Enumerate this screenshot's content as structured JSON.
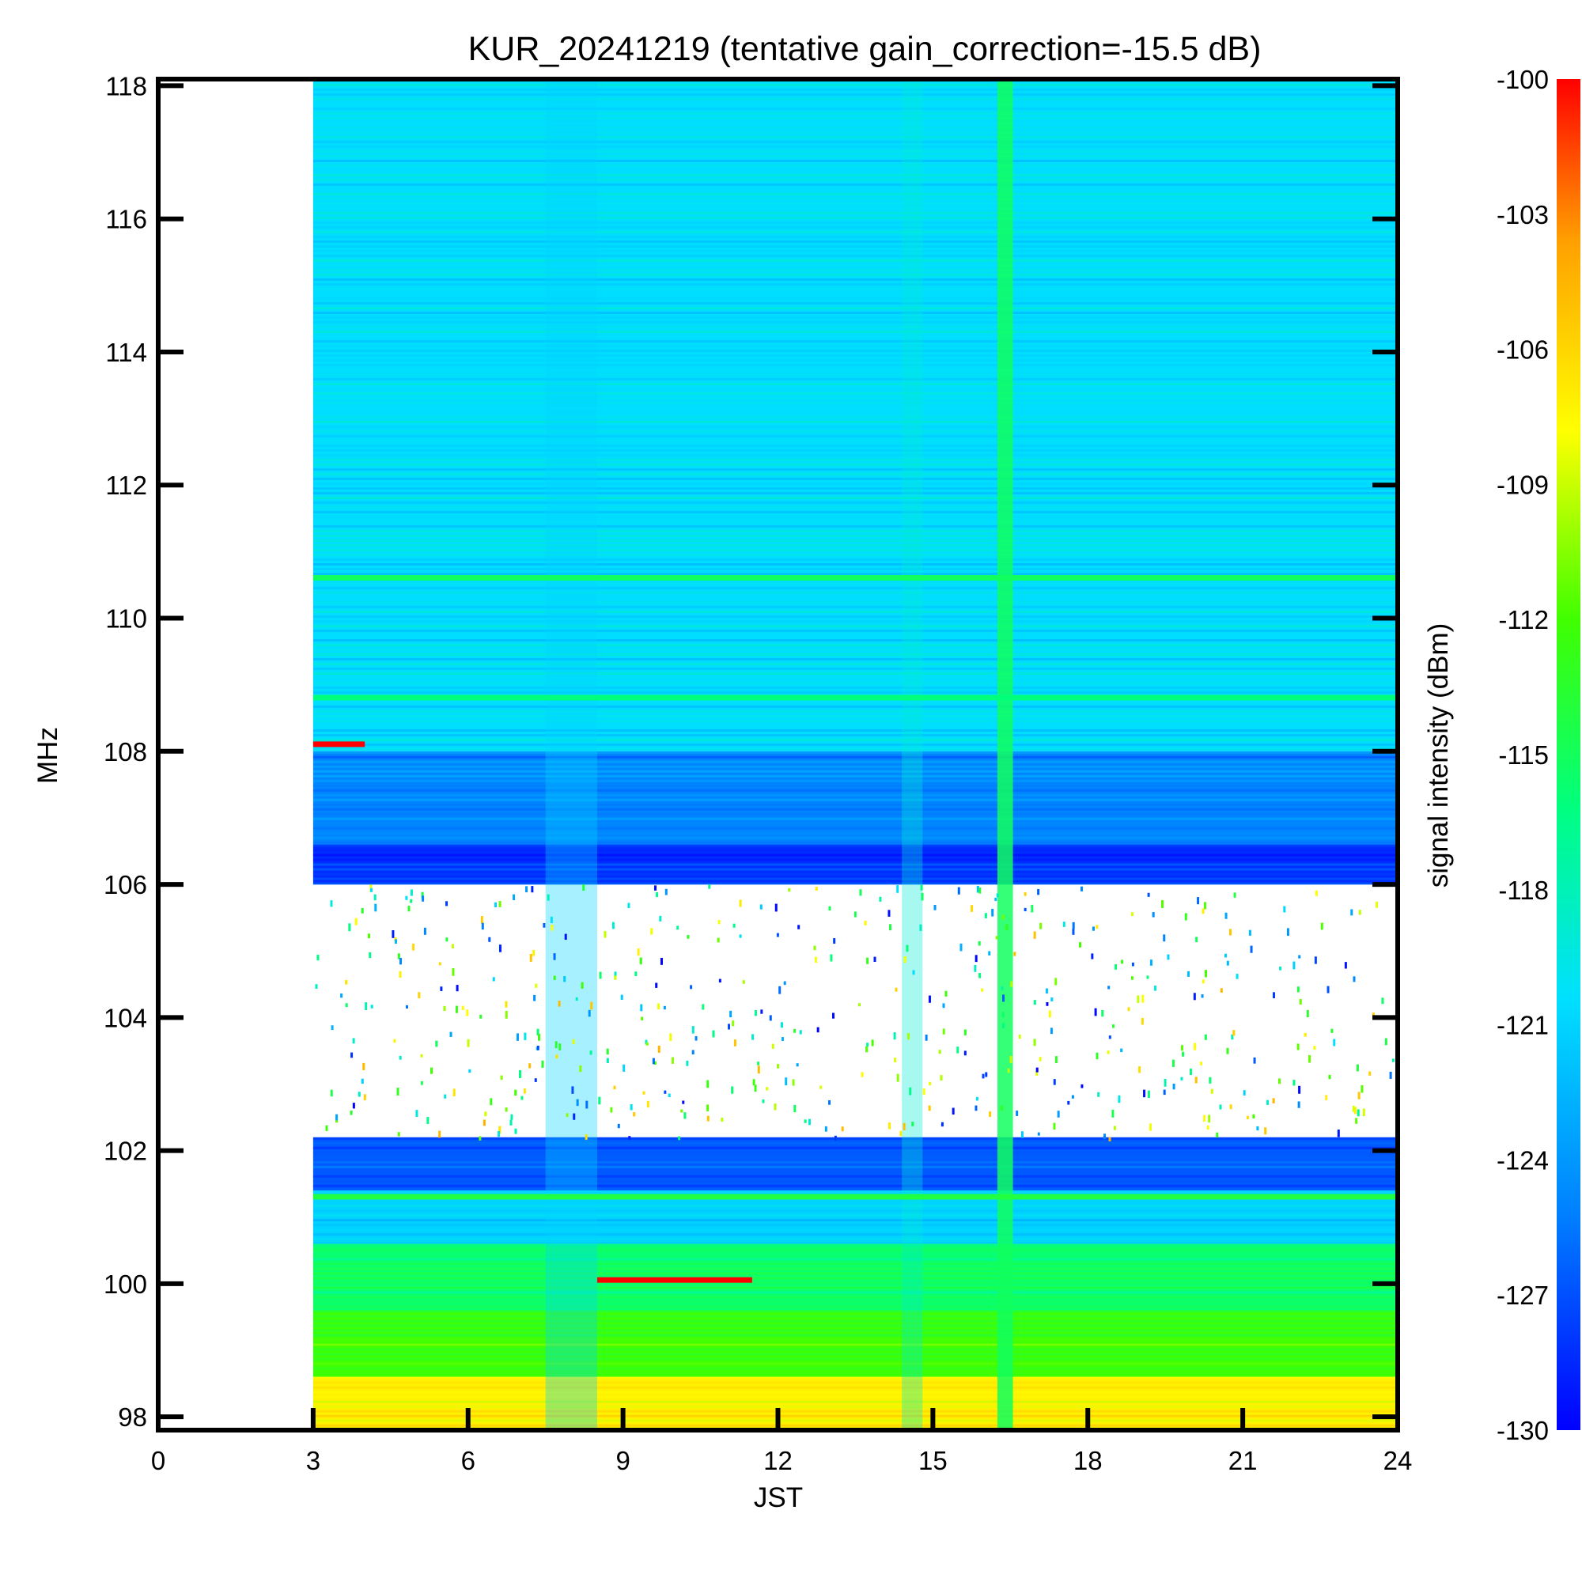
{
  "chart_data": {
    "type": "heatmap",
    "title": "KUR_20241219 (tentative gain_correction=-15.5 dB)",
    "xlabel": "JST",
    "ylabel": "MHz",
    "colorbar_label": "signal intensity (dBm)",
    "xlim": [
      0,
      24
    ],
    "ylim": [
      97.8,
      118.1
    ],
    "data_time_range": [
      3,
      24
    ],
    "x_ticks": [
      0,
      3,
      6,
      9,
      12,
      15,
      18,
      21,
      24
    ],
    "y_ticks": [
      98,
      100,
      102,
      104,
      106,
      108,
      110,
      112,
      114,
      116,
      118
    ],
    "colorbar_range": [
      -130,
      -100
    ],
    "colorbar_ticks": [
      -100,
      -103,
      -106,
      -109,
      -112,
      -115,
      -118,
      -121,
      -124,
      -127,
      -130
    ],
    "colormap": [
      "#0000ff",
      "#0080ff",
      "#00e0ff",
      "#00ff80",
      "#40ff00",
      "#ffff00",
      "#ffa000",
      "#ff0000"
    ],
    "frequency_bands": [
      {
        "from": 108.0,
        "to": 118.1,
        "mean_dBm": -121.5
      },
      {
        "from": 106.6,
        "to": 108.0,
        "mean_dBm": -125.5
      },
      {
        "from": 106.0,
        "to": 106.6,
        "mean_dBm": -128.5
      },
      {
        "from": 102.2,
        "to": 106.0,
        "mean_dBm": null
      },
      {
        "from": 101.4,
        "to": 102.2,
        "mean_dBm": -127.0
      },
      {
        "from": 100.6,
        "to": 101.4,
        "mean_dBm": -122.0
      },
      {
        "from": 99.6,
        "to": 100.6,
        "mean_dBm": -116.5
      },
      {
        "from": 98.6,
        "to": 99.6,
        "mean_dBm": -113.0
      },
      {
        "from": 97.8,
        "to": 98.6,
        "mean_dBm": -108.0
      }
    ],
    "strong_lines": [
      {
        "freq": 110.6,
        "dBm": -116
      },
      {
        "freq": 108.8,
        "dBm": -117
      },
      {
        "freq": 101.3,
        "dBm": -115
      },
      {
        "freq": 100.05,
        "t_from": 8.5,
        "t_to": 11.5,
        "dBm": -100
      },
      {
        "freq": 108.1,
        "t_from": 3,
        "t_to": 4,
        "dBm": -100
      }
    ],
    "time_features": [
      {
        "time": 16.4,
        "width_h": 0.3,
        "note": "broadband vertical band",
        "dBm": -116
      },
      {
        "time": 14.6,
        "width_h": 0.4,
        "dBm": -120
      },
      {
        "time": 8.0,
        "width_h": 1.0,
        "dBm": -122
      }
    ]
  }
}
